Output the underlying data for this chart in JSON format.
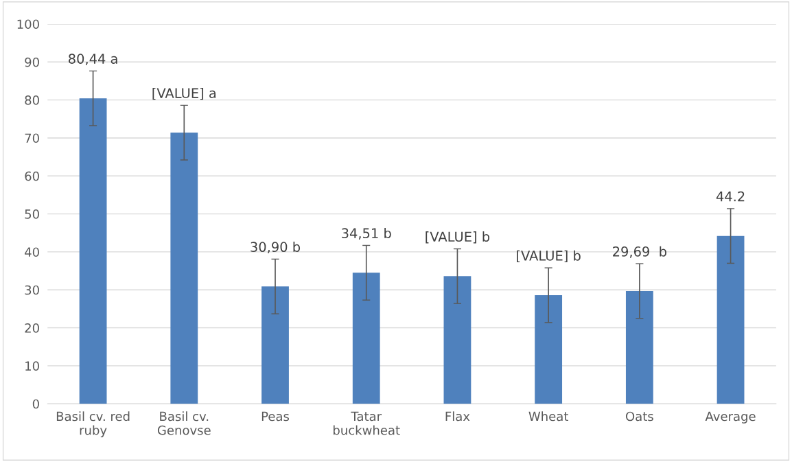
{
  "chart_data": {
    "type": "bar",
    "categories": [
      "Basil cv. red\nruby",
      "Basil cv.\nGenovse",
      "Peas",
      "Tatar\nbuckwheat",
      "Flax",
      "Wheat",
      "Oats",
      "Average"
    ],
    "values": [
      80.44,
      71.4,
      30.9,
      34.51,
      33.6,
      28.6,
      29.69,
      44.2
    ],
    "errors": [
      7.2,
      7.2,
      7.2,
      7.2,
      7.2,
      7.2,
      7.2,
      7.2
    ],
    "value_labels": [
      "80,44 a",
      "[VALUE] a",
      "30,90 b",
      "34,51 b",
      "[VALUE] b",
      "[VALUE] b",
      "29,69  b",
      "44.2"
    ],
    "color": "#4f81bd",
    "ylim": [
      0,
      100
    ],
    "yticks": [
      0,
      10,
      20,
      30,
      40,
      50,
      60,
      70,
      80,
      90,
      100
    ],
    "grid": "y"
  }
}
